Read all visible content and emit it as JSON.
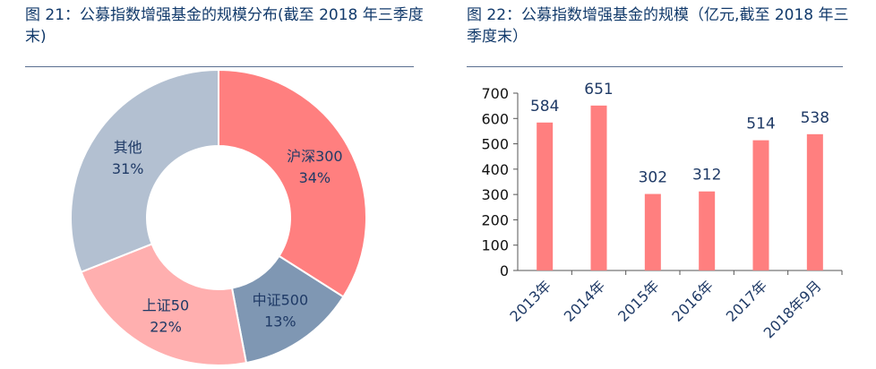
{
  "left_title": "图 21：公募指数增强基金的规模分布(截至 2018 年三季度末)",
  "right_title": "图 22：公募指数增强基金的规模（亿元,截至 2018 年三季度末）",
  "chart_data": [
    {
      "type": "pie",
      "title": "图 21：公募指数增强基金的规模分布(截至 2018 年三季度末)",
      "slices": [
        {
          "label": "沪深300",
          "pct_label": "34%",
          "value": 34,
          "color": "#ff7f7f"
        },
        {
          "label": "中证500",
          "pct_label": "13%",
          "value": 13,
          "color": "#7f97b3"
        },
        {
          "label": "上证50",
          "pct_label": "22%",
          "value": 22,
          "color": "#ffafaf"
        },
        {
          "label": "其他",
          "pct_label": "31%",
          "value": 31,
          "color": "#b3c0d1"
        }
      ]
    },
    {
      "type": "bar",
      "title": "图 22：公募指数增强基金的规模（亿元,截至 2018 年三季度末）",
      "categories": [
        "2013年",
        "2014年",
        "2015年",
        "2016年",
        "2017年",
        "2018年9月"
      ],
      "values": [
        584,
        651,
        302,
        312,
        514,
        538
      ],
      "ylim": [
        0,
        700
      ],
      "yticks": [
        0,
        100,
        200,
        300,
        400,
        500,
        600,
        700
      ],
      "bar_color": "#ff7f7f",
      "grid": false
    }
  ]
}
